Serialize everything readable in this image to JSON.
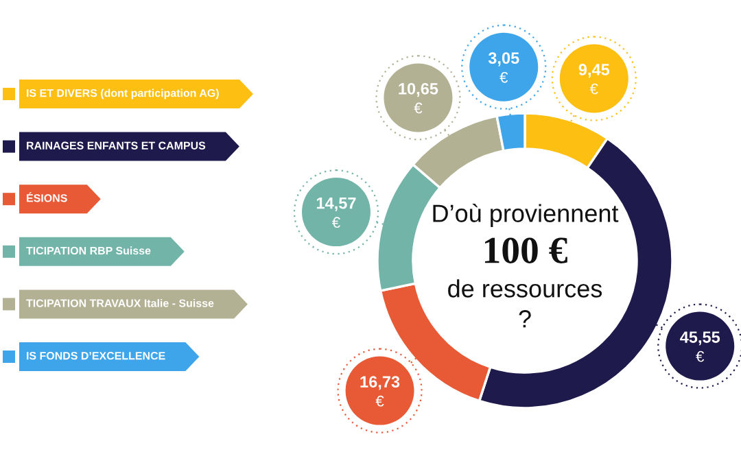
{
  "chart_data": {
    "type": "donut",
    "title": "D’où proviennent\n100 €\nde ressources\n?",
    "categories": [
      "IS ET DIVERS (dont participation AG)",
      "RAINAGES ENFANTS ET CAMPUS",
      "ÉSIONS",
      "TICIPATION RBP Suisse",
      "TICIPATION TRAVAUX Italie - Suisse",
      "IS FONDS D’EXCELLENCE"
    ],
    "values": [
      9.45,
      45.55,
      16.73,
      14.57,
      10.65,
      3.05
    ],
    "colors": [
      "#fcbf12",
      "#1f1a4c",
      "#e85a36",
      "#73b4a9",
      "#b3b194",
      "#3fa5ea"
    ],
    "value_labels": [
      "9,45\n€",
      "45,55\n€",
      "16,73\n€",
      "14,57\n€",
      "10,65\n€",
      "3,05\n€"
    ],
    "legend": "left"
  }
}
